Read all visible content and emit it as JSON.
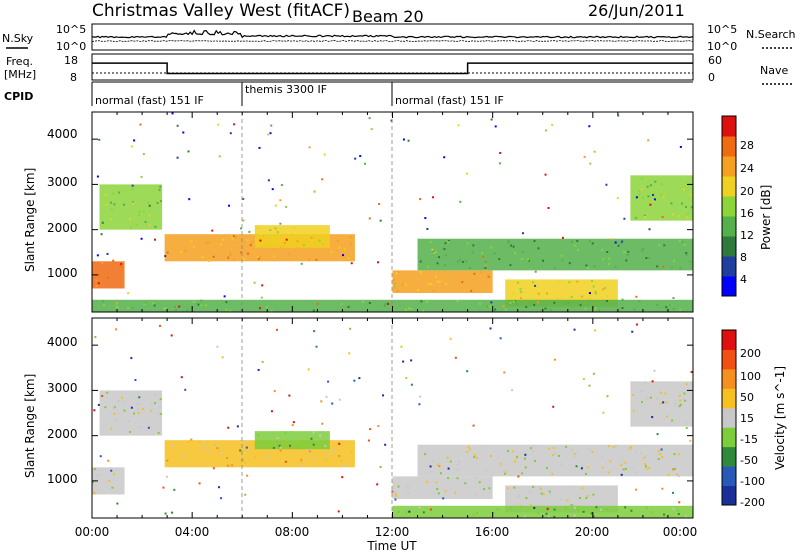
{
  "header": {
    "title": "Christmas Valley West (fitACF)",
    "beam": "Beam 20",
    "date": "26/Jun/2011"
  },
  "status_panels": {
    "nsky_label": "N.Sky",
    "nsearch_label": "N.Search",
    "nsky_ticks": [
      "10^5",
      "10^0"
    ],
    "nsearch_ticks": [
      "10^5",
      "10^0"
    ],
    "freq_label": "Freq.",
    "freq_unit": "[MHz]",
    "freq_ticks": [
      "18",
      "8"
    ],
    "nave_label": "Nave",
    "nave_ticks": [
      "60",
      "0"
    ],
    "cpid_label": "CPID",
    "cpid_segments": [
      {
        "label": "normal (fast) 151 IF",
        "start_h": 0,
        "end_h": 6
      },
      {
        "label": "themis 3300 IF",
        "start_h": 6,
        "end_h": 12
      },
      {
        "label": "normal (fast) 151 IF",
        "start_h": 12,
        "end_h": 24
      }
    ],
    "freq_steps": [
      {
        "h": 0,
        "mhz": 14.5
      },
      {
        "h": 3,
        "mhz": 10.5
      },
      {
        "h": 15,
        "mhz": 14.5
      },
      {
        "h": 24,
        "mhz": 14.5
      }
    ]
  },
  "x_axis": {
    "label": "Time UT",
    "ticks": [
      "00:00",
      "04:00",
      "08:00",
      "12:00",
      "16:00",
      "20:00",
      "00:00"
    ],
    "range_hours": [
      0,
      24
    ]
  },
  "power_panel": {
    "ylabel": "Slant Range [km]",
    "yticks": [
      "4000",
      "3000",
      "2000",
      "1000"
    ],
    "colorbar_label": "Power [dB]",
    "colorbar_ticks": [
      "28",
      "24",
      "20",
      "16",
      "12",
      "8",
      "4"
    ],
    "colors": [
      "#0000ff",
      "#1f3fa0",
      "#2e7a3c",
      "#54b04a",
      "#8bd43a",
      "#f0d020",
      "#f5a020",
      "#f06a10",
      "#e01010"
    ]
  },
  "velocity_panel": {
    "ylabel": "Slant Range [km]",
    "yticks": [
      "4000",
      "3000",
      "2000",
      "1000"
    ],
    "colorbar_label": "Velocity [m s^-1]",
    "colorbar_ticks": [
      "200",
      "100",
      "50",
      "15",
      "-15",
      "-50",
      "-100",
      "-200"
    ],
    "colors": [
      "#1a2f9a",
      "#2a58b8",
      "#2e8a3a",
      "#7ccc3c",
      "#c8c8c8",
      "#f5c020",
      "#f59020",
      "#f05010",
      "#e01010"
    ]
  },
  "chart_data": [
    {
      "type": "heatmap",
      "name": "Power",
      "xlabel": "Time UT",
      "ylabel": "Slant Range [km]",
      "xlim": [
        0,
        24
      ],
      "ylim": [
        180,
        4600
      ],
      "zlabel": "Power [dB]",
      "zlim": [
        0,
        32
      ],
      "regions": [
        {
          "t0": 0.0,
          "t1": 1.3,
          "r0": 700,
          "r1": 1300,
          "level": 7
        },
        {
          "t0": 0.3,
          "t1": 2.8,
          "r0": 2000,
          "r1": 3000,
          "level": 4
        },
        {
          "t0": 2.9,
          "t1": 10.5,
          "r0": 1300,
          "r1": 1900,
          "level": 6
        },
        {
          "t0": 6.5,
          "t1": 9.5,
          "r0": 1600,
          "r1": 2100,
          "level": 5
        },
        {
          "t0": 12.0,
          "t1": 16.0,
          "r0": 600,
          "r1": 1100,
          "level": 6
        },
        {
          "t0": 13.0,
          "t1": 24.0,
          "r0": 1100,
          "r1": 1800,
          "level": 3
        },
        {
          "t0": 16.5,
          "t1": 21.0,
          "r0": 300,
          "r1": 900,
          "level": 5
        },
        {
          "t0": 21.5,
          "t1": 24.0,
          "r0": 2200,
          "r1": 3200,
          "level": 4
        },
        {
          "t0": 0.0,
          "t1": 24.0,
          "r0": 180,
          "r1": 450,
          "level": 3
        }
      ]
    },
    {
      "type": "heatmap",
      "name": "Velocity",
      "xlabel": "Time UT",
      "ylabel": "Slant Range [km]",
      "xlim": [
        0,
        24
      ],
      "ylim": [
        180,
        4600
      ],
      "zlabel": "Velocity [m s^-1]",
      "zlim": [
        -200,
        200
      ],
      "regions": [
        {
          "t0": 0.0,
          "t1": 1.3,
          "r0": 700,
          "r1": 1300,
          "level": 4
        },
        {
          "t0": 0.3,
          "t1": 2.8,
          "r0": 2000,
          "r1": 3000,
          "level": 4
        },
        {
          "t0": 2.9,
          "t1": 10.5,
          "r0": 1300,
          "r1": 1900,
          "level": 5
        },
        {
          "t0": 6.5,
          "t1": 9.5,
          "r0": 1700,
          "r1": 2100,
          "level": 3
        },
        {
          "t0": 12.0,
          "t1": 16.0,
          "r0": 600,
          "r1": 1100,
          "level": 4
        },
        {
          "t0": 13.0,
          "t1": 24.0,
          "r0": 1100,
          "r1": 1800,
          "level": 4
        },
        {
          "t0": 16.5,
          "t1": 21.0,
          "r0": 300,
          "r1": 900,
          "level": 4
        },
        {
          "t0": 21.5,
          "t1": 24.0,
          "r0": 2200,
          "r1": 3200,
          "level": 4
        },
        {
          "t0": 12.0,
          "t1": 24.0,
          "r0": 180,
          "r1": 450,
          "level": 3
        }
      ]
    }
  ]
}
